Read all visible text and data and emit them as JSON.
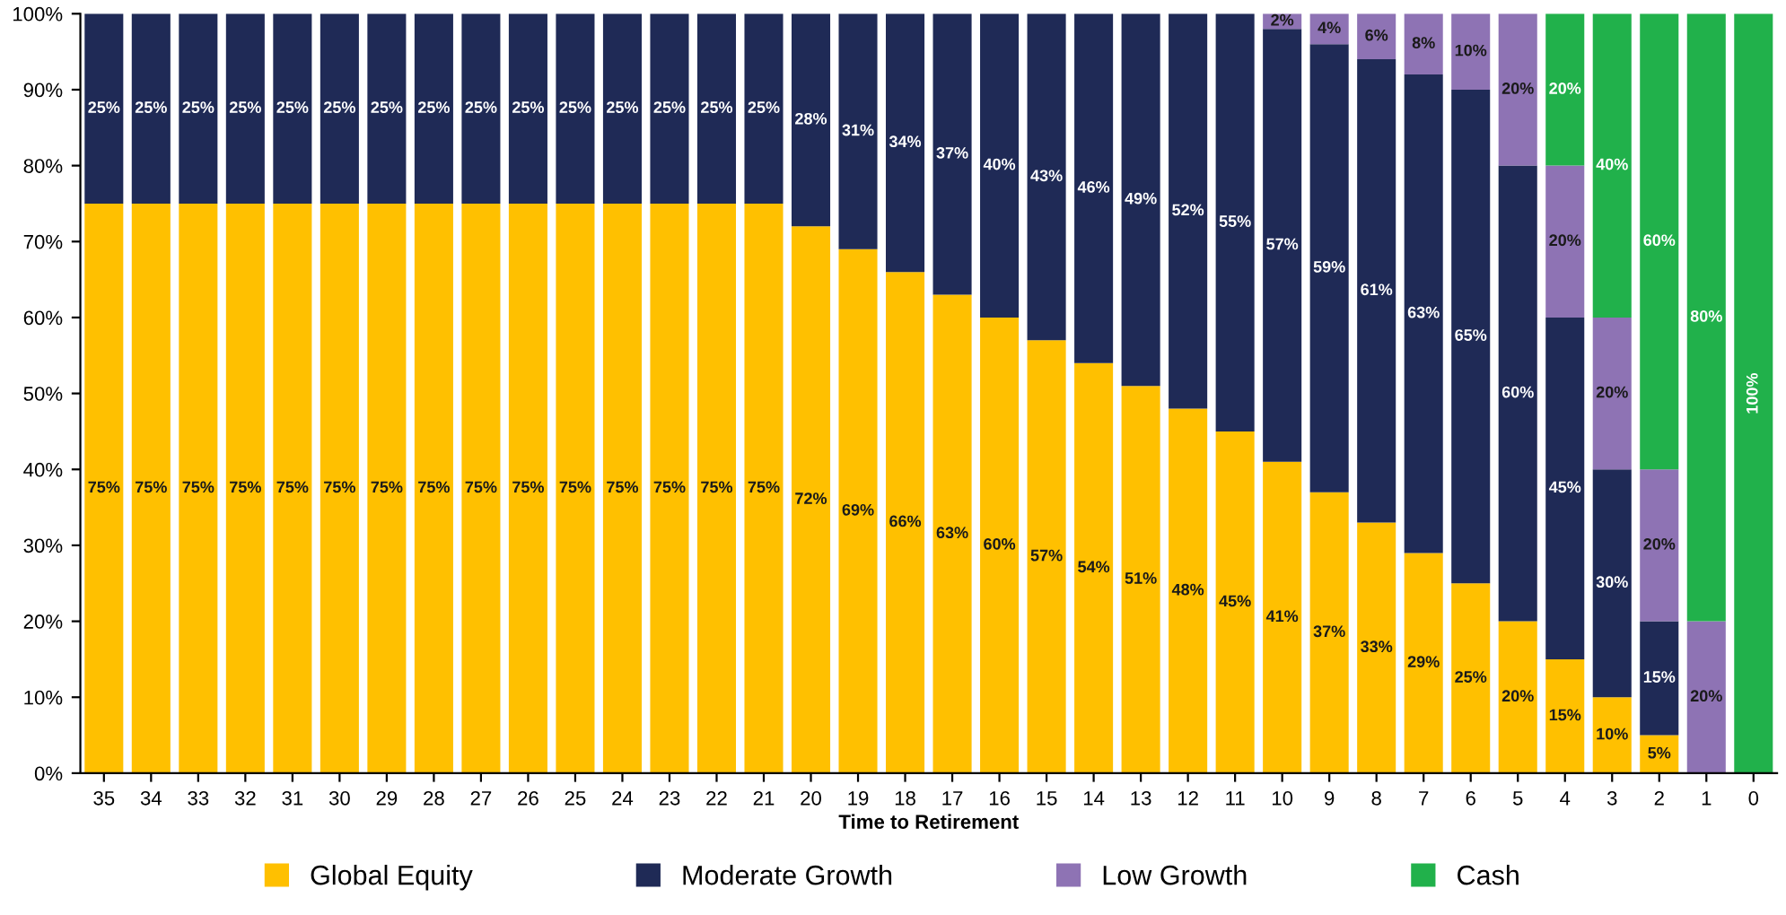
{
  "chart_data": {
    "type": "bar",
    "stacked": true,
    "xlabel": "Time to Retirement",
    "categories": [
      "35",
      "34",
      "33",
      "32",
      "31",
      "30",
      "29",
      "28",
      "27",
      "26",
      "25",
      "24",
      "23",
      "22",
      "21",
      "20",
      "19",
      "18",
      "17",
      "16",
      "15",
      "14",
      "13",
      "12",
      "11",
      "10",
      "9",
      "8",
      "7",
      "6",
      "5",
      "4",
      "3",
      "2",
      "1",
      "0"
    ],
    "series": [
      {
        "name": "Global Equity",
        "color": "#ffc000",
        "values": [
          75,
          75,
          75,
          75,
          75,
          75,
          75,
          75,
          75,
          75,
          75,
          75,
          75,
          75,
          75,
          72,
          69,
          66,
          63,
          60,
          57,
          54,
          51,
          48,
          45,
          41,
          37,
          33,
          29,
          25,
          20,
          15,
          10,
          5,
          0,
          0
        ],
        "value_labels": [
          "75%",
          "75%",
          "75%",
          "75%",
          "75%",
          "75%",
          "75%",
          "75%",
          "75%",
          "75%",
          "75%",
          "75%",
          "75%",
          "75%",
          "75%",
          "72%",
          "69%",
          "66%",
          "63%",
          "60%",
          "57%",
          "54%",
          "51%",
          "48%",
          "45%",
          "41%",
          "37%",
          "33%",
          "29%",
          "25%",
          "20%",
          "15%",
          "10%",
          "5%",
          null,
          null
        ]
      },
      {
        "name": "Moderate Growth",
        "color": "#1f2a56",
        "values": [
          25,
          25,
          25,
          25,
          25,
          25,
          25,
          25,
          25,
          25,
          25,
          25,
          25,
          25,
          25,
          28,
          31,
          34,
          37,
          40,
          43,
          46,
          49,
          52,
          55,
          57,
          59,
          61,
          63,
          65,
          60,
          45,
          30,
          15,
          0,
          0
        ],
        "value_labels": [
          "25%",
          "25%",
          "25%",
          "25%",
          "25%",
          "25%",
          "25%",
          "25%",
          "25%",
          "25%",
          "25%",
          "25%",
          "25%",
          "25%",
          "25%",
          "28%",
          "31%",
          "34%",
          "37%",
          "40%",
          "43%",
          "46%",
          "49%",
          "52%",
          "55%",
          "57%",
          "59%",
          "61%",
          "63%",
          "65%",
          "60%",
          "45%",
          "30%",
          "15%",
          null,
          null
        ]
      },
      {
        "name": "Low Growth",
        "color": "#8e73b4",
        "values": [
          0,
          0,
          0,
          0,
          0,
          0,
          0,
          0,
          0,
          0,
          0,
          0,
          0,
          0,
          0,
          0,
          0,
          0,
          0,
          0,
          0,
          0,
          0,
          0,
          0,
          2,
          4,
          6,
          8,
          10,
          20,
          20,
          20,
          20,
          20,
          0
        ],
        "value_labels": [
          null,
          null,
          null,
          null,
          null,
          null,
          null,
          null,
          null,
          null,
          null,
          null,
          null,
          null,
          null,
          null,
          null,
          null,
          null,
          null,
          null,
          null,
          null,
          null,
          null,
          "2%",
          "4%",
          "6%",
          "8%",
          "10%",
          "20%",
          "20%",
          "20%",
          "20%",
          "20%",
          null
        ]
      },
      {
        "name": "Cash",
        "color": "#21b14b",
        "values": [
          0,
          0,
          0,
          0,
          0,
          0,
          0,
          0,
          0,
          0,
          0,
          0,
          0,
          0,
          0,
          0,
          0,
          0,
          0,
          0,
          0,
          0,
          0,
          0,
          0,
          0,
          0,
          0,
          0,
          0,
          0,
          20,
          40,
          60,
          80,
          100
        ],
        "value_labels": [
          null,
          null,
          null,
          null,
          null,
          null,
          null,
          null,
          null,
          null,
          null,
          null,
          null,
          null,
          null,
          null,
          null,
          null,
          null,
          null,
          null,
          null,
          null,
          null,
          null,
          null,
          null,
          null,
          null,
          null,
          null,
          "20%",
          "40%",
          "60%",
          "80%",
          "100%"
        ]
      }
    ],
    "ylim": [
      0,
      100
    ],
    "yticks": [
      {
        "value": 0,
        "label": "0%"
      },
      {
        "value": 10,
        "label": "10%"
      },
      {
        "value": 20,
        "label": "20%"
      },
      {
        "value": 30,
        "label": "30%"
      },
      {
        "value": 40,
        "label": "40%"
      },
      {
        "value": 50,
        "label": "50%"
      },
      {
        "value": 60,
        "label": "60%"
      },
      {
        "value": 70,
        "label": "70%"
      },
      {
        "value": 80,
        "label": "80%"
      },
      {
        "value": 90,
        "label": "90%"
      },
      {
        "value": 100,
        "label": "100%"
      }
    ],
    "grid": false,
    "legend": "bottom"
  }
}
